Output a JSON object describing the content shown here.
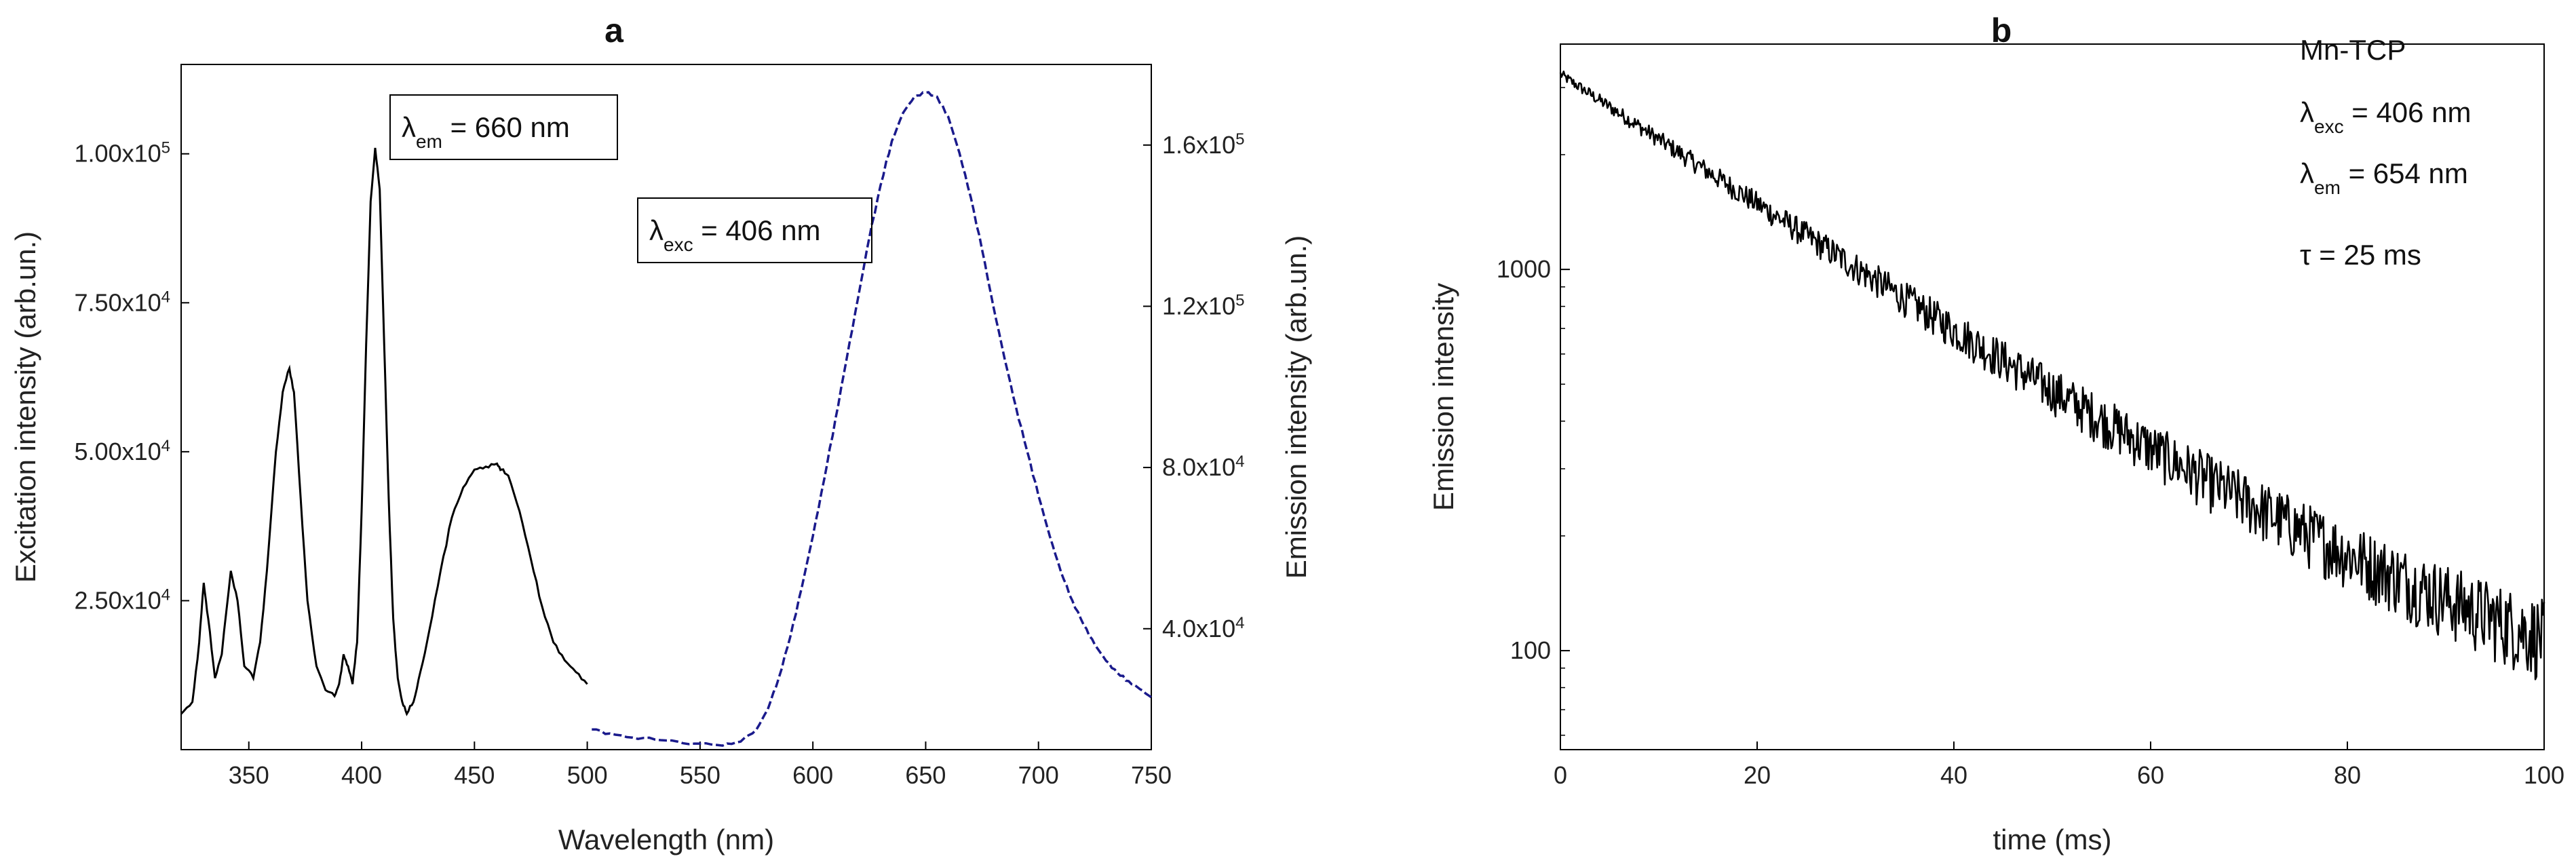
{
  "chart_data": [
    {
      "type": "line",
      "title": "a",
      "xlabel": "Wavelength (nm)",
      "ylabel_left": "Excitation intensity (arb.un.)",
      "ylabel_right": "Emission intensity (arb.un.)",
      "xlim": [
        320,
        750
      ],
      "ylim_left": [
        0,
        115000
      ],
      "ylim_right": [
        10000,
        180000
      ],
      "x_ticks": [
        350,
        400,
        450,
        500,
        550,
        600,
        650,
        700,
        750
      ],
      "x_tick_labels": [
        "350",
        "400",
        "450",
        "500",
        "550",
        "600",
        "650",
        "700",
        "750"
      ],
      "y_left_ticks": [
        25000,
        50000,
        75000,
        100000
      ],
      "y_left_tick_mantissa": [
        "2.50x10",
        "5.00x10",
        "7.50x10",
        "1.00x10"
      ],
      "y_left_tick_exp": [
        "4",
        "4",
        "4",
        "5"
      ],
      "y_right_ticks": [
        40000,
        80000,
        120000,
        160000
      ],
      "y_right_tick_mantissa": [
        "4.0x10",
        "8.0x10",
        "1.2x10",
        "1.6x10"
      ],
      "y_right_tick_exp": [
        "4",
        "4",
        "5",
        "5"
      ],
      "grid": false,
      "series": [
        {
          "name": "excitation",
          "axis": "left",
          "color": "#000000",
          "style": "solid",
          "x": [
            320,
            325,
            328,
            330,
            332,
            335,
            338,
            342,
            345,
            348,
            352,
            355,
            358,
            362,
            365,
            368,
            370,
            373,
            376,
            380,
            384,
            388,
            390,
            392,
            394,
            396,
            398,
            400,
            402,
            404,
            406,
            408,
            410,
            412,
            414,
            416,
            418,
            420,
            423,
            426,
            430,
            435,
            440,
            445,
            450,
            455,
            460,
            462,
            465,
            470,
            475,
            480,
            485,
            490,
            495,
            500
          ],
          "y": [
            6000,
            8000,
            18000,
            28000,
            22000,
            12000,
            16000,
            30000,
            25000,
            14000,
            12000,
            18000,
            30000,
            50000,
            60000,
            64000,
            60000,
            42000,
            25000,
            14000,
            10000,
            9000,
            11000,
            16000,
            14000,
            11000,
            18000,
            40000,
            68000,
            92000,
            101000,
            94000,
            68000,
            42000,
            22000,
            12000,
            8000,
            6000,
            8000,
            13000,
            20000,
            30000,
            39000,
            44000,
            47000,
            47500,
            48000,
            47000,
            46000,
            40000,
            32000,
            24000,
            18000,
            15000,
            13000,
            11000
          ]
        },
        {
          "name": "emission",
          "axis": "right",
          "color": "#1a1a8c",
          "style": "dashed",
          "x": [
            502,
            510,
            520,
            530,
            540,
            550,
            560,
            568,
            575,
            580,
            585,
            590,
            595,
            600,
            605,
            610,
            615,
            620,
            625,
            630,
            635,
            640,
            645,
            650,
            655,
            660,
            665,
            670,
            675,
            680,
            685,
            690,
            695,
            700,
            705,
            710,
            715,
            720,
            725,
            730,
            735,
            740,
            745,
            750
          ],
          "y": [
            15000,
            14000,
            13000,
            12500,
            12000,
            11500,
            11000,
            12000,
            15000,
            20000,
            28000,
            38000,
            50000,
            63000,
            77000,
            92000,
            107000,
            122000,
            137000,
            150000,
            161000,
            168000,
            172000,
            173000,
            172000,
            167000,
            158000,
            147000,
            134000,
            120000,
            107000,
            95000,
            84000,
            73000,
            63000,
            54000,
            47000,
            41000,
            36000,
            32000,
            29000,
            27000,
            25000,
            23000
          ]
        }
      ],
      "annotations": [
        {
          "lambda": "λ",
          "sub": "em",
          "text": " = 660 nm"
        },
        {
          "lambda": "λ",
          "sub": "exc",
          "text": " = 406 nm"
        }
      ]
    },
    {
      "type": "line",
      "title": "b",
      "xlabel": "time (ms)",
      "ylabel": "Emission intensity",
      "yscale": "log",
      "xlim": [
        0,
        100
      ],
      "ylim": [
        55,
        3900
      ],
      "x_ticks": [
        0,
        20,
        40,
        60,
        80,
        100
      ],
      "x_tick_labels": [
        "0",
        "20",
        "40",
        "60",
        "80",
        "100"
      ],
      "y_ticks": [
        100,
        1000
      ],
      "y_tick_labels": [
        "100",
        "1000"
      ],
      "grid": false,
      "decay": {
        "amplitude": 3200,
        "tau_ms": 25,
        "offset": 50,
        "x_start": 0,
        "x_end": 100
      },
      "series": [
        {
          "name": "decay",
          "color": "#000000",
          "style": "solid"
        }
      ],
      "legend_text": {
        "sample": "Mn-TCP",
        "exc": {
          "lambda": "λ",
          "sub": "exc",
          "text": " = 406 nm"
        },
        "em": {
          "lambda": "λ",
          "sub": "em",
          "text": " = 654 nm"
        },
        "tau": "τ = 25 ms"
      }
    }
  ]
}
